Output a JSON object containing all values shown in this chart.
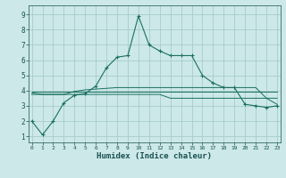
{
  "title": "",
  "xlabel": "Humidex (Indice chaleur)",
  "ylabel": "",
  "background_color": "#cce8e8",
  "grid_color": "#a8cccc",
  "line_color": "#1a7060",
  "x_ticks": [
    0,
    1,
    2,
    3,
    4,
    5,
    6,
    7,
    8,
    9,
    10,
    11,
    12,
    13,
    14,
    15,
    16,
    17,
    18,
    19,
    20,
    21,
    22,
    23
  ],
  "y_ticks": [
    1,
    2,
    3,
    4,
    5,
    6,
    7,
    8,
    9
  ],
  "xlim": [
    -0.3,
    23.3
  ],
  "ylim": [
    0.6,
    9.6
  ],
  "main_line": [
    2.0,
    1.1,
    2.0,
    3.2,
    3.7,
    3.8,
    4.3,
    5.5,
    6.2,
    6.3,
    8.9,
    7.0,
    6.6,
    6.3,
    6.3,
    6.3,
    5.0,
    4.5,
    4.2,
    4.2,
    3.1,
    3.0,
    2.9,
    3.0
  ],
  "flat_line1": [
    3.95,
    3.95,
    3.95,
    3.95,
    3.95,
    3.95,
    3.95,
    3.95,
    3.95,
    3.95,
    3.95,
    3.95,
    3.95,
    3.95,
    3.95,
    3.95,
    3.95,
    3.95,
    3.95,
    3.95,
    3.95,
    3.95,
    3.95,
    3.95
  ],
  "flat_line2": [
    3.75,
    3.75,
    3.75,
    3.75,
    3.75,
    3.75,
    3.75,
    3.75,
    3.75,
    3.75,
    3.75,
    3.75,
    3.75,
    3.5,
    3.5,
    3.5,
    3.5,
    3.5,
    3.5,
    3.5,
    3.5,
    3.5,
    3.5,
    3.5
  ],
  "flat_line3": [
    3.85,
    3.75,
    3.75,
    3.75,
    3.95,
    4.05,
    4.1,
    4.15,
    4.2,
    4.2,
    4.2,
    4.2,
    4.2,
    4.2,
    4.2,
    4.2,
    4.2,
    4.2,
    4.2,
    4.2,
    4.2,
    4.2,
    3.5,
    3.1
  ]
}
